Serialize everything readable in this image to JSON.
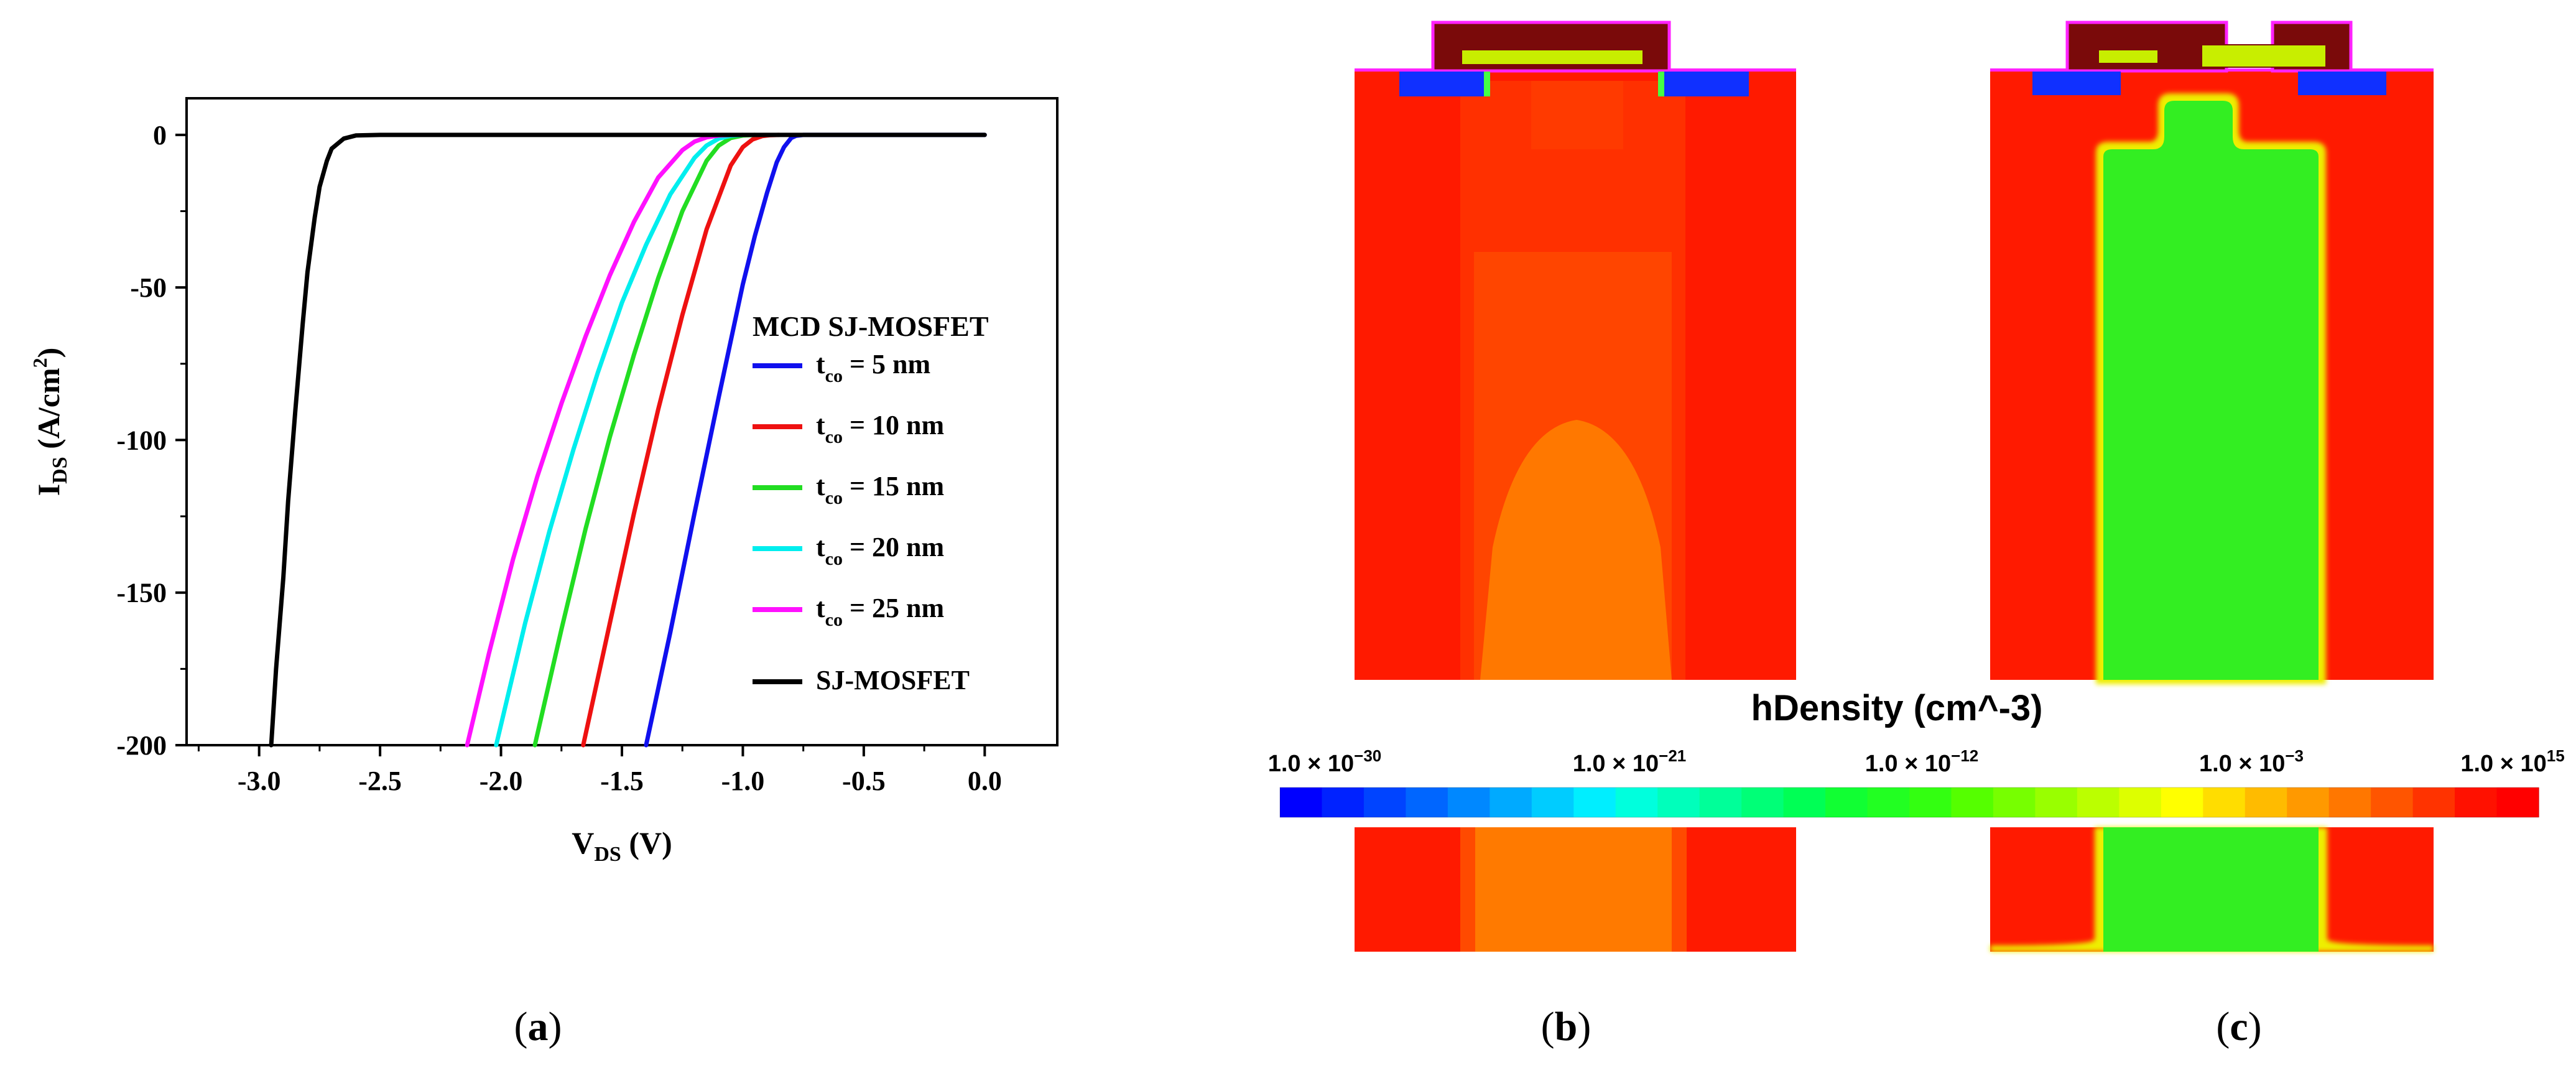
{
  "colors": {
    "blue": "#1010ee",
    "red": "#ee1111",
    "green": "#22dd22",
    "cyan": "#00eeee",
    "magenta": "#ff11ff",
    "black": "#000000",
    "map_red": "#ff1a00",
    "map_orange_red": "#ff3c00",
    "map_orange": "#ff6000",
    "map_orange_light": "#ff8000",
    "map_green": "#22ee22",
    "map_gate_dark": "#7a0a0a",
    "map_gate_lime": "#c8ee00",
    "map_contact_blue": "#1030ff",
    "map_outline_magenta": "#ff22ff"
  },
  "chart_data": {
    "type": "line",
    "title": "MCD SJ-MOSFET",
    "xlabel": {
      "main": "V",
      "sub": "DS",
      "unit": " (V)"
    },
    "ylabel": {
      "main": "I",
      "sub": "DS",
      "unit_pre": " (A/cm",
      "unit_sup": "2",
      "unit_post": ")"
    },
    "xlim": [
      -3.3,
      0.3
    ],
    "ylim": [
      -200,
      12
    ],
    "xticks": [
      -3.0,
      -2.5,
      -2.0,
      -1.5,
      -1.0,
      -0.5,
      0.0
    ],
    "xtick_labels": [
      "-3.0",
      "-2.5",
      "-2.0",
      "-1.5",
      "-1.0",
      "-0.5",
      "0.0"
    ],
    "yticks": [
      0,
      -50,
      -100,
      -150,
      -200
    ],
    "ytick_labels": [
      "0",
      "-50",
      "-100",
      "-150",
      "-200"
    ],
    "series": [
      {
        "name_main": "t",
        "name_sub": "co",
        "name_rest": " = 5 nm",
        "color": "#1010ee",
        "x": [
          -1.4,
          -1.3,
          -1.2,
          -1.1,
          -1.0,
          -0.95,
          -0.9,
          -0.86,
          -0.83,
          -0.8,
          -0.78,
          -0.75,
          0.0
        ],
        "y": [
          -200,
          -163,
          -124,
          -86,
          -49,
          -33,
          -19,
          -9,
          -4,
          -1,
          -0.3,
          0,
          0
        ]
      },
      {
        "name_main": "t",
        "name_sub": "co",
        "name_rest": " = 10 nm",
        "color": "#ee1111",
        "x": [
          -1.66,
          -1.55,
          -1.45,
          -1.35,
          -1.25,
          -1.15,
          -1.05,
          -1.0,
          -0.96,
          -0.92,
          -0.89,
          -0.85
        ],
        "y": [
          -200,
          -160,
          -124,
          -90,
          -59,
          -31,
          -10,
          -4,
          -1.5,
          -0.4,
          -0.1,
          0
        ]
      },
      {
        "name_main": "t",
        "name_sub": "co",
        "name_rest": " = 15 nm",
        "color": "#22dd22",
        "x": [
          -1.86,
          -1.75,
          -1.65,
          -1.55,
          -1.45,
          -1.35,
          -1.25,
          -1.15,
          -1.1,
          -1.05,
          -1.0,
          -0.95
        ],
        "y": [
          -200,
          -162,
          -129,
          -99,
          -72,
          -47,
          -25,
          -8.5,
          -3.5,
          -1.0,
          -0.2,
          0
        ]
      },
      {
        "name_main": "t",
        "name_sub": "co",
        "name_rest": " = 20 nm",
        "color": "#00eeee",
        "x": [
          -2.02,
          -1.9,
          -1.8,
          -1.7,
          -1.6,
          -1.5,
          -1.4,
          -1.3,
          -1.2,
          -1.15,
          -1.1,
          -1.05,
          -1.0
        ],
        "y": [
          -200,
          -160,
          -130,
          -103,
          -78,
          -55,
          -36,
          -19.5,
          -7.5,
          -3.5,
          -1.2,
          -0.3,
          0
        ]
      },
      {
        "name_main": "t",
        "name_sub": "co",
        "name_rest": " = 25 nm",
        "color": "#ff11ff",
        "x": [
          -2.14,
          -2.05,
          -1.95,
          -1.85,
          -1.75,
          -1.65,
          -1.55,
          -1.45,
          -1.35,
          -1.25,
          -1.2,
          -1.15,
          -1.1,
          -1.05
        ],
        "y": [
          -200,
          -170,
          -139,
          -112,
          -88,
          -66,
          -46,
          -28.5,
          -14,
          -5,
          -2.2,
          -0.8,
          -0.2,
          0
        ]
      },
      {
        "name_main": "SJ-MOSFET",
        "name_sub": "",
        "name_rest": "",
        "color": "#000000",
        "x": [
          -2.95,
          -2.93,
          -2.9,
          -2.88,
          -2.85,
          -2.82,
          -2.8,
          -2.77,
          -2.75,
          -2.72,
          -2.7,
          -2.65,
          -2.6,
          -2.5,
          0.0
        ],
        "y": [
          -200,
          -175,
          -145,
          -120,
          -90,
          -62,
          -45,
          -27,
          -17,
          -8.5,
          -4.5,
          -1.2,
          -0.2,
          0,
          0
        ]
      }
    ]
  },
  "colorbar": {
    "title": "hDensity (cm^-3)",
    "labels": [
      {
        "base": "1.0 × 10",
        "exp": "−30"
      },
      {
        "base": "1.0 × 10",
        "exp": "−21"
      },
      {
        "base": "1.0 × 10",
        "exp": "−12"
      },
      {
        "base": "1.0 × 10",
        "exp": "−3"
      },
      {
        "base": "1.0 × 10",
        "exp": "15"
      }
    ],
    "segment_colors": [
      "#0000ff",
      "#0022ff",
      "#0044ff",
      "#0066ff",
      "#0088ff",
      "#00aaff",
      "#00ccff",
      "#00eeff",
      "#00ffdd",
      "#00ffbb",
      "#00ff99",
      "#00ff77",
      "#00ff55",
      "#11ff33",
      "#22ff22",
      "#33ff11",
      "#55ff00",
      "#77ff00",
      "#99ff00",
      "#bbff00",
      "#ddff00",
      "#ffff00",
      "#ffdd00",
      "#ffbb00",
      "#ff9900",
      "#ff7700",
      "#ff5500",
      "#ff3300",
      "#ff1100",
      "#ff0000"
    ]
  },
  "panel_labels": [
    "(a)",
    "(b)",
    "(c)"
  ]
}
